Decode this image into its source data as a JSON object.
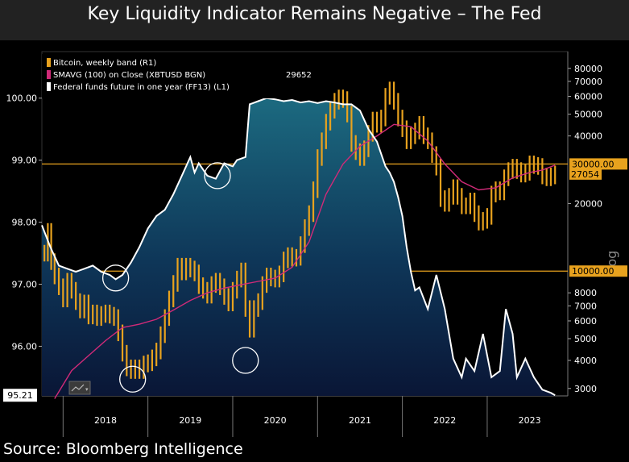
{
  "title": "Key Liquidity Indicator Remains Negative – The Fed",
  "source": "Source: Bloomberg Intelligence",
  "colors": {
    "bitcoin": "#e8a21e",
    "sma": "#d02a78",
    "fedfunds": "#ffffff",
    "hline": "#e8a21e",
    "background": "#000000"
  },
  "chart_data": {
    "type": "line",
    "legend": [
      {
        "label": "Bitcoin, weekly band (R1)",
        "color": "#e8a21e",
        "value": ""
      },
      {
        "label": "SMAVG (100)  on Close (XBTUSD BGN)",
        "color": "#d02a78",
        "value": "29652"
      },
      {
        "label": "Federal funds future in one year (FF13)  (L1)",
        "color": "#ffffff",
        "value": ""
      }
    ],
    "x_ticks": [
      "2018",
      "2019",
      "2020",
      "2021",
      "2022",
      "2023"
    ],
    "x_range": [
      2017.75,
      2023.95
    ],
    "left_axis": {
      "range": [
        95.2,
        100.75
      ],
      "ticks": [
        "96.00",
        "97.00",
        "98.00",
        "99.00",
        "100.00"
      ],
      "tick_values": [
        96,
        97,
        98,
        99,
        100
      ],
      "last_label": "95.21",
      "last_value": 95.21
    },
    "right_axis": {
      "scale": "log",
      "range": [
        2780,
        95000
      ],
      "ticks": [
        "3000",
        "4000",
        "5000",
        "6000",
        "7000",
        "8000",
        "20000",
        "40000",
        "50000",
        "60000",
        "70000",
        "80000"
      ],
      "tick_values": [
        3000,
        4000,
        5000,
        6000,
        7000,
        8000,
        20000,
        40000,
        50000,
        60000,
        70000,
        80000
      ],
      "hlines": [
        {
          "value": 30000,
          "label": "30000.00"
        },
        {
          "value": 10000,
          "label": "10000.00"
        }
      ],
      "last_label": "27054",
      "last_value": 27054,
      "axis_label": "Log"
    },
    "series": [
      {
        "name": "Federal funds future in one year (FF13)",
        "axis": "left",
        "style": "line-area",
        "points": [
          [
            2017.75,
            97.95
          ],
          [
            2017.85,
            97.6
          ],
          [
            2017.95,
            97.3
          ],
          [
            2018.05,
            97.25
          ],
          [
            2018.15,
            97.2
          ],
          [
            2018.25,
            97.25
          ],
          [
            2018.35,
            97.3
          ],
          [
            2018.45,
            97.2
          ],
          [
            2018.55,
            97.15
          ],
          [
            2018.62,
            97.08
          ],
          [
            2018.7,
            97.15
          ],
          [
            2018.8,
            97.35
          ],
          [
            2018.9,
            97.6
          ],
          [
            2019.0,
            97.9
          ],
          [
            2019.1,
            98.1
          ],
          [
            2019.2,
            98.2
          ],
          [
            2019.3,
            98.45
          ],
          [
            2019.4,
            98.75
          ],
          [
            2019.5,
            99.05
          ],
          [
            2019.55,
            98.8
          ],
          [
            2019.6,
            98.95
          ],
          [
            2019.7,
            98.75
          ],
          [
            2019.8,
            98.7
          ],
          [
            2019.9,
            98.95
          ],
          [
            2020.0,
            98.9
          ],
          [
            2020.05,
            99.0
          ],
          [
            2020.15,
            99.05
          ],
          [
            2020.2,
            99.9
          ],
          [
            2020.3,
            99.95
          ],
          [
            2020.4,
            100.0
          ],
          [
            2020.5,
            99.98
          ],
          [
            2020.6,
            99.95
          ],
          [
            2020.7,
            99.97
          ],
          [
            2020.8,
            99.93
          ],
          [
            2020.9,
            99.95
          ],
          [
            2021.0,
            99.92
          ],
          [
            2021.1,
            99.95
          ],
          [
            2021.2,
            99.93
          ],
          [
            2021.3,
            99.9
          ],
          [
            2021.4,
            99.9
          ],
          [
            2021.5,
            99.8
          ],
          [
            2021.6,
            99.5
          ],
          [
            2021.7,
            99.3
          ],
          [
            2021.8,
            98.9
          ],
          [
            2021.85,
            98.8
          ],
          [
            2021.9,
            98.65
          ],
          [
            2021.95,
            98.4
          ],
          [
            2022.0,
            98.1
          ],
          [
            2022.05,
            97.6
          ],
          [
            2022.1,
            97.2
          ],
          [
            2022.15,
            96.9
          ],
          [
            2022.2,
            96.95
          ],
          [
            2022.3,
            96.6
          ],
          [
            2022.4,
            97.15
          ],
          [
            2022.5,
            96.6
          ],
          [
            2022.6,
            95.8
          ],
          [
            2022.7,
            95.5
          ],
          [
            2022.75,
            95.8
          ],
          [
            2022.85,
            95.6
          ],
          [
            2022.95,
            96.2
          ],
          [
            2023.05,
            95.5
          ],
          [
            2023.15,
            95.6
          ],
          [
            2023.22,
            96.6
          ],
          [
            2023.3,
            96.2
          ],
          [
            2023.35,
            95.5
          ],
          [
            2023.45,
            95.8
          ],
          [
            2023.55,
            95.5
          ],
          [
            2023.65,
            95.3
          ],
          [
            2023.75,
            95.25
          ],
          [
            2023.8,
            95.21
          ]
        ]
      },
      {
        "name": "SMAVG (100) on Close (XBTUSD BGN)",
        "axis": "right",
        "style": "line",
        "points": [
          [
            2017.9,
            2700
          ],
          [
            2018.1,
            3600
          ],
          [
            2018.3,
            4200
          ],
          [
            2018.5,
            4900
          ],
          [
            2018.7,
            5600
          ],
          [
            2018.9,
            5800
          ],
          [
            2019.1,
            6100
          ],
          [
            2019.3,
            6700
          ],
          [
            2019.5,
            7400
          ],
          [
            2019.7,
            8000
          ],
          [
            2019.9,
            8400
          ],
          [
            2020.1,
            8700
          ],
          [
            2020.3,
            9000
          ],
          [
            2020.5,
            9300
          ],
          [
            2020.7,
            10400
          ],
          [
            2020.9,
            13500
          ],
          [
            2021.1,
            22000
          ],
          [
            2021.3,
            30000
          ],
          [
            2021.5,
            36000
          ],
          [
            2021.7,
            40000
          ],
          [
            2021.9,
            45000
          ],
          [
            2022.1,
            44000
          ],
          [
            2022.3,
            38000
          ],
          [
            2022.5,
            30000
          ],
          [
            2022.7,
            25000
          ],
          [
            2022.9,
            23000
          ],
          [
            2023.1,
            23500
          ],
          [
            2023.3,
            26000
          ],
          [
            2023.5,
            27500
          ],
          [
            2023.65,
            28200
          ],
          [
            2023.8,
            29652
          ]
        ]
      },
      {
        "name": "Bitcoin, weekly band",
        "axis": "right",
        "style": "band",
        "points": [
          [
            2017.78,
            12000
          ],
          [
            2017.82,
            15000
          ],
          [
            2017.86,
            11000
          ],
          [
            2017.9,
            9500
          ],
          [
            2017.95,
            8500
          ],
          [
            2018.0,
            7500
          ],
          [
            2018.05,
            9000
          ],
          [
            2018.1,
            8200
          ],
          [
            2018.15,
            7300
          ],
          [
            2018.2,
            6700
          ],
          [
            2018.25,
            7200
          ],
          [
            2018.3,
            6300
          ],
          [
            2018.35,
            6500
          ],
          [
            2018.4,
            6200
          ],
          [
            2018.45,
            6400
          ],
          [
            2018.5,
            6500
          ],
          [
            2018.55,
            6350
          ],
          [
            2018.6,
            6200
          ],
          [
            2018.65,
            5300
          ],
          [
            2018.7,
            4300
          ],
          [
            2018.75,
            3700
          ],
          [
            2018.8,
            3600
          ],
          [
            2018.85,
            3700
          ],
          [
            2018.9,
            3600
          ],
          [
            2018.95,
            3850
          ],
          [
            2019.0,
            3900
          ],
          [
            2019.05,
            4100
          ],
          [
            2019.1,
            4400
          ],
          [
            2019.15,
            5200
          ],
          [
            2019.2,
            6200
          ],
          [
            2019.25,
            7500
          ],
          [
            2019.3,
            8800
          ],
          [
            2019.35,
            10500
          ],
          [
            2019.4,
            9900
          ],
          [
            2019.45,
            10500
          ],
          [
            2019.5,
            10200
          ],
          [
            2019.55,
            9800
          ],
          [
            2019.6,
            8600
          ],
          [
            2019.65,
            8200
          ],
          [
            2019.7,
            7800
          ],
          [
            2019.75,
            8700
          ],
          [
            2019.8,
            9000
          ],
          [
            2019.85,
            8500
          ],
          [
            2019.9,
            7700
          ],
          [
            2019.95,
            7200
          ],
          [
            2020.0,
            8200
          ],
          [
            2020.05,
            9200
          ],
          [
            2020.1,
            10000
          ],
          [
            2020.15,
            6800
          ],
          [
            2020.2,
            5500
          ],
          [
            2020.25,
            6800
          ],
          [
            2020.3,
            7300
          ],
          [
            2020.35,
            8700
          ],
          [
            2020.4,
            9500
          ],
          [
            2020.45,
            9300
          ],
          [
            2020.5,
            9200
          ],
          [
            2020.55,
            9700
          ],
          [
            2020.6,
            11200
          ],
          [
            2020.65,
            11700
          ],
          [
            2020.7,
            11400
          ],
          [
            2020.75,
            11500
          ],
          [
            2020.8,
            13100
          ],
          [
            2020.85,
            15600
          ],
          [
            2020.9,
            18000
          ],
          [
            2020.95,
            23000
          ],
          [
            2021.0,
            32000
          ],
          [
            2021.05,
            38000
          ],
          [
            2021.1,
            46000
          ],
          [
            2021.15,
            52000
          ],
          [
            2021.2,
            57000
          ],
          [
            2021.25,
            59000
          ],
          [
            2021.3,
            58000
          ],
          [
            2021.35,
            50000
          ],
          [
            2021.4,
            37000
          ],
          [
            2021.45,
            34000
          ],
          [
            2021.5,
            32000
          ],
          [
            2021.55,
            35000
          ],
          [
            2021.6,
            41000
          ],
          [
            2021.65,
            47000
          ],
          [
            2021.7,
            45000
          ],
          [
            2021.75,
            48000
          ],
          [
            2021.8,
            60000
          ],
          [
            2021.85,
            64000
          ],
          [
            2021.9,
            57000
          ],
          [
            2021.95,
            48000
          ],
          [
            2022.0,
            43000
          ],
          [
            2022.05,
            38000
          ],
          [
            2022.1,
            40000
          ],
          [
            2022.15,
            42000
          ],
          [
            2022.2,
            45000
          ],
          [
            2022.25,
            40000
          ],
          [
            2022.3,
            38000
          ],
          [
            2022.35,
            33000
          ],
          [
            2022.4,
            29000
          ],
          [
            2022.45,
            21000
          ],
          [
            2022.5,
            20000
          ],
          [
            2022.55,
            21500
          ],
          [
            2022.6,
            23500
          ],
          [
            2022.65,
            21500
          ],
          [
            2022.7,
            19500
          ],
          [
            2022.75,
            19500
          ],
          [
            2022.8,
            20500
          ],
          [
            2022.85,
            18000
          ],
          [
            2022.9,
            16500
          ],
          [
            2022.95,
            16800
          ],
          [
            2023.0,
            17500
          ],
          [
            2023.05,
            22000
          ],
          [
            2023.1,
            23000
          ],
          [
            2023.15,
            22500
          ],
          [
            2023.2,
            26000
          ],
          [
            2023.25,
            28000
          ],
          [
            2023.3,
            29000
          ],
          [
            2023.35,
            28000
          ],
          [
            2023.4,
            27000
          ],
          [
            2023.45,
            27500
          ],
          [
            2023.5,
            30000
          ],
          [
            2023.55,
            29500
          ],
          [
            2023.6,
            29200
          ],
          [
            2023.65,
            26500
          ],
          [
            2023.7,
            26000
          ],
          [
            2023.75,
            26500
          ],
          [
            2023.8,
            27054
          ]
        ]
      }
    ],
    "highlight_circles": [
      {
        "x": 2018.62,
        "axis": "left",
        "value": 97.1
      },
      {
        "x": 2018.82,
        "axis": "right",
        "value": 3300
      },
      {
        "x": 2019.82,
        "axis": "left",
        "value": 98.75
      },
      {
        "x": 2020.15,
        "axis": "right",
        "value": 4000
      }
    ]
  }
}
